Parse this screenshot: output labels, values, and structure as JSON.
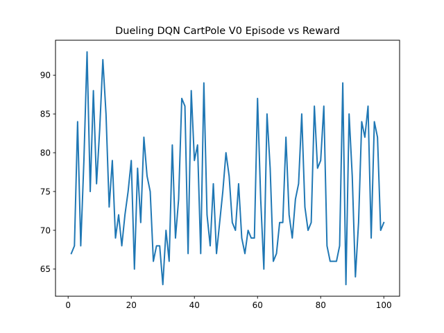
{
  "chart_data": {
    "type": "line",
    "title": "Dueling DQN CartPole V0 Episode vs Reward",
    "xlabel": "",
    "ylabel": "",
    "xlim": [
      -4,
      105
    ],
    "ylim": [
      61.5,
      94.5
    ],
    "xticks": [
      0,
      20,
      40,
      60,
      80,
      100
    ],
    "yticks": [
      65,
      70,
      75,
      80,
      85,
      90
    ],
    "grid": false,
    "line_color": "#1f77b4",
    "series": [
      {
        "x": [
          1,
          2,
          3,
          4,
          5,
          6,
          7,
          8,
          9,
          10,
          11,
          12,
          13,
          14,
          15,
          16,
          17,
          18,
          19,
          20,
          21,
          22,
          23,
          24,
          25,
          26,
          27,
          28,
          29,
          30,
          31,
          32,
          33,
          34,
          35,
          36,
          37,
          38,
          39,
          40,
          41,
          42,
          43,
          44,
          45,
          46,
          47,
          48,
          49,
          50,
          51,
          52,
          53,
          54,
          55,
          56,
          57,
          58,
          59,
          60,
          61,
          62,
          63,
          64,
          65,
          66,
          67,
          68,
          69,
          70,
          71,
          72,
          73,
          74,
          75,
          76,
          77,
          78,
          79,
          80,
          81,
          82,
          83,
          84,
          85,
          86,
          87,
          88,
          89,
          90,
          91,
          92,
          93,
          94,
          95,
          96,
          97,
          98,
          99,
          100
        ],
        "values": [
          67,
          68,
          84,
          68,
          79,
          93,
          75,
          88,
          76,
          83,
          92,
          85,
          73,
          79,
          69,
          72,
          68,
          72,
          75,
          79,
          65,
          78,
          71,
          82,
          77,
          75,
          66,
          68,
          68,
          63,
          70,
          66,
          81,
          69,
          74,
          87,
          86,
          67,
          88,
          79,
          81,
          67,
          89,
          72,
          68,
          76,
          67,
          71,
          75,
          80,
          77,
          71,
          70,
          76,
          69,
          67,
          70,
          69,
          69,
          87,
          74,
          65,
          85,
          78,
          66,
          67,
          71,
          71,
          82,
          72,
          69,
          74,
          76,
          85,
          73,
          70,
          71,
          86,
          78,
          79,
          86,
          68,
          66,
          66,
          66,
          68,
          89,
          63,
          85,
          77,
          64,
          71,
          84,
          82,
          86,
          69,
          84,
          82,
          70,
          71
        ]
      }
    ]
  }
}
